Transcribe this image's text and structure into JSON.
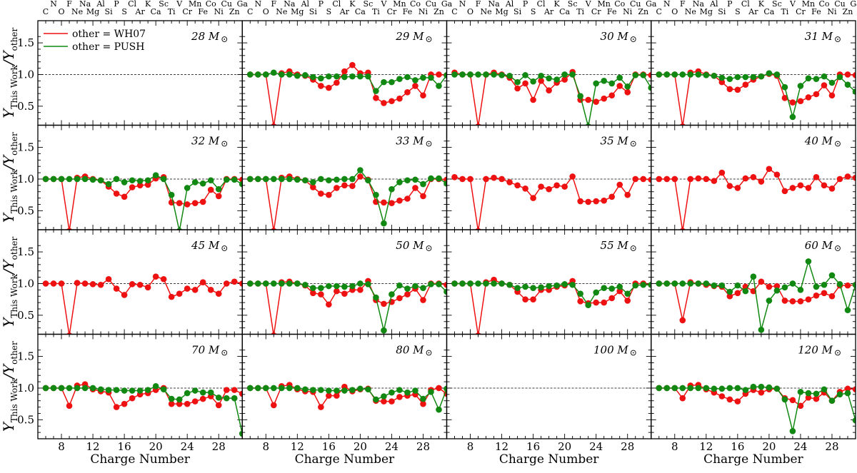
{
  "chart_data": {
    "type": "line",
    "xlabel": "Charge Number",
    "ylabel": "Y_This Work / Y_other",
    "ylabel_parts": {
      "main": "Y",
      "sub": "This Work",
      "mid": "/Y",
      "sub2": "other"
    },
    "xlim": [
      5,
      31
    ],
    "ylim": [
      0.2,
      1.85
    ],
    "xticks": [
      8,
      12,
      16,
      20,
      24,
      28
    ],
    "yticks": [
      0.5,
      1.0,
      1.5
    ],
    "ytick_labels": [
      "0.5",
      "1.0",
      "1.5"
    ],
    "reference_line": 1.0,
    "element_labels_top": [
      {
        "z": 7,
        "symbol": "N"
      },
      {
        "z": 9,
        "symbol": "F"
      },
      {
        "z": 11,
        "symbol": "Na"
      },
      {
        "z": 13,
        "symbol": "Al"
      },
      {
        "z": 15,
        "symbol": "P"
      },
      {
        "z": 17,
        "symbol": "Cl"
      },
      {
        "z": 19,
        "symbol": "K"
      },
      {
        "z": 21,
        "symbol": "Sc"
      },
      {
        "z": 23,
        "symbol": "V"
      },
      {
        "z": 25,
        "symbol": "Mn"
      },
      {
        "z": 27,
        "symbol": "Co"
      },
      {
        "z": 29,
        "symbol": "Cu"
      },
      {
        "z": 31,
        "symbol": "Ga"
      }
    ],
    "element_labels_bottom": [
      {
        "z": 6,
        "symbol": "C"
      },
      {
        "z": 8,
        "symbol": "O"
      },
      {
        "z": 10,
        "symbol": "Ne"
      },
      {
        "z": 12,
        "symbol": "Mg"
      },
      {
        "z": 14,
        "symbol": "Si"
      },
      {
        "z": 16,
        "symbol": "S"
      },
      {
        "z": 18,
        "symbol": "Ar"
      },
      {
        "z": 20,
        "symbol": "Ca"
      },
      {
        "z": 22,
        "symbol": "Ti"
      },
      {
        "z": 24,
        "symbol": "Cr"
      },
      {
        "z": 26,
        "symbol": "Fe"
      },
      {
        "z": 28,
        "symbol": "Ni"
      },
      {
        "z": 30,
        "symbol": "Zn"
      }
    ],
    "legend": {
      "placement": "top-left of first panel",
      "entries": [
        {
          "label": "other = WH07",
          "color": "#ee1111"
        },
        {
          "label": "other = PUSH",
          "color": "#118811"
        }
      ]
    },
    "x": [
      6,
      7,
      8,
      9,
      10,
      11,
      12,
      13,
      14,
      15,
      16,
      17,
      18,
      19,
      20,
      21,
      22,
      23,
      24,
      25,
      26,
      27,
      28,
      29,
      30,
      31
    ],
    "panels": [
      {
        "mass": "28",
        "wh07": null,
        "push": null
      },
      {
        "mass": "29",
        "wh07": [
          1.0,
          1.0,
          1.0,
          0.18,
          1.02,
          1.05,
          1.0,
          0.98,
          0.92,
          0.82,
          0.79,
          0.87,
          1.05,
          1.15,
          1.02,
          1.03,
          0.63,
          0.55,
          0.58,
          0.62,
          0.72,
          0.82,
          0.67,
          1.0,
          1.0,
          0.99
        ],
        "push": [
          1.0,
          1.0,
          1.0,
          1.03,
          1.0,
          1.0,
          0.98,
          0.99,
          0.96,
          0.94,
          0.97,
          0.97,
          0.96,
          0.97,
          0.97,
          0.97,
          0.74,
          0.88,
          0.88,
          0.93,
          0.96,
          0.91,
          0.95,
          0.95,
          0.82,
          0.99
        ]
      },
      {
        "mass": "30",
        "wh07": [
          1.03,
          1.0,
          1.0,
          0.18,
          1.0,
          1.03,
          1.0,
          0.95,
          0.78,
          0.86,
          0.6,
          0.9,
          0.75,
          0.87,
          0.92,
          1.04,
          0.6,
          0.6,
          0.57,
          0.62,
          0.67,
          0.82,
          0.72,
          1.0,
          1.0,
          0.99
        ],
        "push": [
          1.0,
          1.0,
          1.0,
          1.0,
          1.0,
          1.0,
          0.99,
          0.98,
          0.88,
          0.99,
          0.89,
          0.98,
          0.94,
          0.92,
          1.0,
          1.0,
          0.66,
          0.18,
          0.86,
          0.9,
          0.86,
          0.95,
          0.81,
          0.99,
          0.99,
          0.79
        ]
      },
      {
        "mass": "31",
        "wh07": [
          1.0,
          1.0,
          1.0,
          0.18,
          1.03,
          1.05,
          1.0,
          0.98,
          0.88,
          0.77,
          0.76,
          0.84,
          0.92,
          0.97,
          1.01,
          0.98,
          0.63,
          0.56,
          0.58,
          0.64,
          0.69,
          0.83,
          0.67,
          1.0,
          1.0,
          0.99
        ],
        "push": [
          1.0,
          1.0,
          1.0,
          1.0,
          1.0,
          1.0,
          0.99,
          0.98,
          0.95,
          0.93,
          0.96,
          0.96,
          0.96,
          0.97,
          1.02,
          1.0,
          0.8,
          0.33,
          0.82,
          0.94,
          0.93,
          0.97,
          0.87,
          0.96,
          0.84,
          0.73
        ]
      },
      {
        "mass": "32",
        "wh07": [
          1.0,
          1.0,
          1.0,
          0.18,
          1.02,
          1.04,
          1.0,
          0.98,
          0.88,
          0.77,
          0.72,
          0.87,
          0.9,
          0.91,
          1.01,
          1.03,
          0.63,
          0.62,
          0.6,
          0.62,
          0.64,
          0.83,
          0.73,
          1.0,
          1.0,
          0.99
        ],
        "push": [
          1.0,
          1.0,
          1.0,
          1.0,
          1.0,
          1.0,
          0.99,
          0.98,
          0.92,
          1.0,
          0.95,
          0.98,
          0.97,
          0.98,
          1.06,
          1.0,
          0.75,
          0.18,
          0.86,
          0.95,
          0.93,
          0.98,
          0.84,
          0.99,
          0.99,
          0.92
        ]
      },
      {
        "mass": "33",
        "wh07": [
          1.0,
          1.0,
          1.0,
          0.18,
          1.02,
          1.04,
          1.0,
          0.98,
          0.87,
          0.77,
          0.75,
          0.86,
          0.9,
          0.89,
          1.04,
          0.99,
          0.64,
          0.63,
          0.62,
          0.66,
          0.69,
          0.86,
          0.73,
          1.0,
          1.0,
          0.99
        ],
        "push": [
          1.0,
          1.0,
          1.0,
          1.0,
          1.0,
          1.0,
          0.99,
          0.98,
          0.95,
          1.0,
          0.98,
          0.99,
          1.0,
          1.0,
          1.14,
          0.98,
          0.75,
          0.3,
          0.84,
          0.95,
          0.98,
          0.99,
          0.92,
          1.01,
          1.01,
          0.93
        ]
      },
      {
        "mass": "35",
        "wh07": [
          1.03,
          1.0,
          1.0,
          0.18,
          1.0,
          1.02,
          1.0,
          0.95,
          0.9,
          0.85,
          0.7,
          0.88,
          0.84,
          0.9,
          0.88,
          1.04,
          0.65,
          0.64,
          0.65,
          0.66,
          0.72,
          0.91,
          0.75,
          1.0,
          1.0,
          0.99
        ],
        "push": null
      },
      {
        "mass": "40",
        "wh07": [
          1.0,
          1.0,
          1.0,
          0.18,
          1.0,
          1.01,
          1.0,
          0.97,
          1.1,
          0.89,
          0.86,
          1.01,
          1.03,
          0.96,
          1.16,
          1.07,
          0.81,
          0.86,
          0.9,
          0.86,
          1.03,
          0.9,
          0.85,
          1.0,
          1.04,
          1.02
        ],
        "push": null
      },
      {
        "mass": "45",
        "wh07": [
          1.0,
          1.0,
          1.0,
          0.18,
          1.01,
          1.0,
          0.99,
          0.98,
          1.07,
          0.92,
          0.82,
          0.99,
          0.98,
          0.94,
          1.11,
          1.07,
          0.79,
          0.84,
          0.92,
          0.9,
          1.02,
          0.9,
          0.84,
          1.0,
          1.03,
          1.0
        ],
        "push": null
      },
      {
        "mass": "50",
        "wh07": [
          1.0,
          1.0,
          1.0,
          0.18,
          1.02,
          1.03,
          1.0,
          0.97,
          0.85,
          0.83,
          0.67,
          0.88,
          0.84,
          0.9,
          0.9,
          1.04,
          0.74,
          0.68,
          0.71,
          0.77,
          0.83,
          0.92,
          0.74,
          1.0,
          1.0,
          0.98
        ],
        "push": [
          1.0,
          1.0,
          1.0,
          1.0,
          1.0,
          1.0,
          1.0,
          0.98,
          0.93,
          0.93,
          0.96,
          0.96,
          0.95,
          0.96,
          1.0,
          0.99,
          0.78,
          0.26,
          0.83,
          0.97,
          0.92,
          0.96,
          0.93,
          0.99,
          0.99,
          0.87
        ]
      },
      {
        "mass": "55",
        "wh07": [
          1.0,
          1.0,
          1.0,
          0.18,
          1.02,
          1.06,
          1.0,
          0.98,
          0.87,
          0.75,
          0.75,
          0.9,
          0.9,
          0.95,
          0.97,
          1.04,
          0.72,
          0.69,
          0.7,
          0.7,
          0.77,
          0.88,
          0.73,
          1.0,
          1.0,
          0.98
        ],
        "push": [
          1.0,
          1.0,
          1.0,
          1.0,
          1.0,
          1.0,
          1.0,
          0.98,
          0.93,
          0.95,
          0.93,
          0.94,
          0.96,
          0.97,
          0.99,
          0.98,
          0.84,
          0.66,
          0.86,
          0.93,
          0.92,
          0.95,
          0.84,
          0.97,
          0.98,
          0.98
        ]
      },
      {
        "mass": "60",
        "wh07": [
          1.0,
          1.0,
          1.0,
          0.42,
          1.02,
          1.0,
          0.98,
          0.96,
          0.95,
          0.8,
          0.85,
          0.95,
          0.88,
          1.03,
          0.95,
          0.96,
          0.73,
          0.72,
          0.72,
          0.75,
          0.81,
          0.85,
          0.8,
          0.97,
          0.97,
          0.98
        ],
        "push": [
          1.0,
          1.0,
          1.0,
          1.0,
          1.0,
          1.0,
          1.0,
          0.97,
          0.97,
          0.87,
          0.97,
          0.88,
          1.11,
          0.27,
          0.73,
          0.89,
          0.94,
          1.0,
          0.9,
          1.35,
          0.95,
          0.98,
          1.13,
          0.99,
          0.58,
          0.98
        ]
      },
      {
        "mass": "70",
        "wh07": [
          1.0,
          1.0,
          1.0,
          0.72,
          1.04,
          1.06,
          0.98,
          0.95,
          0.93,
          0.7,
          0.75,
          0.84,
          0.9,
          0.92,
          0.97,
          1.0,
          0.75,
          0.75,
          0.75,
          0.79,
          0.83,
          0.87,
          0.73,
          0.97,
          0.97,
          0.91
        ],
        "push": [
          1.0,
          1.0,
          1.0,
          1.0,
          1.0,
          1.0,
          1.0,
          0.98,
          0.97,
          0.97,
          0.96,
          0.96,
          0.96,
          0.97,
          1.03,
          0.98,
          0.83,
          0.82,
          0.92,
          0.96,
          0.93,
          0.93,
          0.85,
          0.84,
          0.84,
          0.28
        ]
      },
      {
        "mass": "80",
        "wh07": [
          1.0,
          1.0,
          1.0,
          0.73,
          1.03,
          1.05,
          0.98,
          0.95,
          0.94,
          0.7,
          0.88,
          0.88,
          1.02,
          0.95,
          0.98,
          0.99,
          0.8,
          0.79,
          0.79,
          0.86,
          0.88,
          0.9,
          0.75,
          0.97,
          1.0,
          0.91
        ],
        "push": [
          1.0,
          1.0,
          1.0,
          1.0,
          1.0,
          1.0,
          1.0,
          0.98,
          0.97,
          0.97,
          0.96,
          0.96,
          0.96,
          0.97,
          0.99,
          0.98,
          0.82,
          0.87,
          0.93,
          0.97,
          0.93,
          0.96,
          0.83,
          0.94,
          0.66,
          0.99
        ]
      },
      {
        "mass": "100",
        "wh07": null,
        "push": null
      },
      {
        "mass": "120",
        "wh07": [
          1.0,
          1.0,
          1.0,
          0.84,
          1.04,
          1.05,
          0.98,
          0.93,
          0.87,
          0.82,
          0.79,
          0.91,
          0.97,
          0.93,
          0.98,
          0.99,
          0.84,
          0.81,
          0.72,
          0.85,
          0.83,
          0.93,
          0.8,
          0.94,
          0.99,
          0.98
        ],
        "push": [
          1.0,
          1.0,
          1.0,
          1.0,
          1.0,
          1.0,
          1.0,
          0.99,
          0.99,
          1.0,
          1.0,
          0.97,
          1.02,
          1.02,
          1.01,
          0.99,
          0.82,
          0.32,
          0.94,
          0.92,
          0.91,
          0.98,
          0.8,
          0.9,
          0.92,
          0.49
        ]
      }
    ]
  }
}
